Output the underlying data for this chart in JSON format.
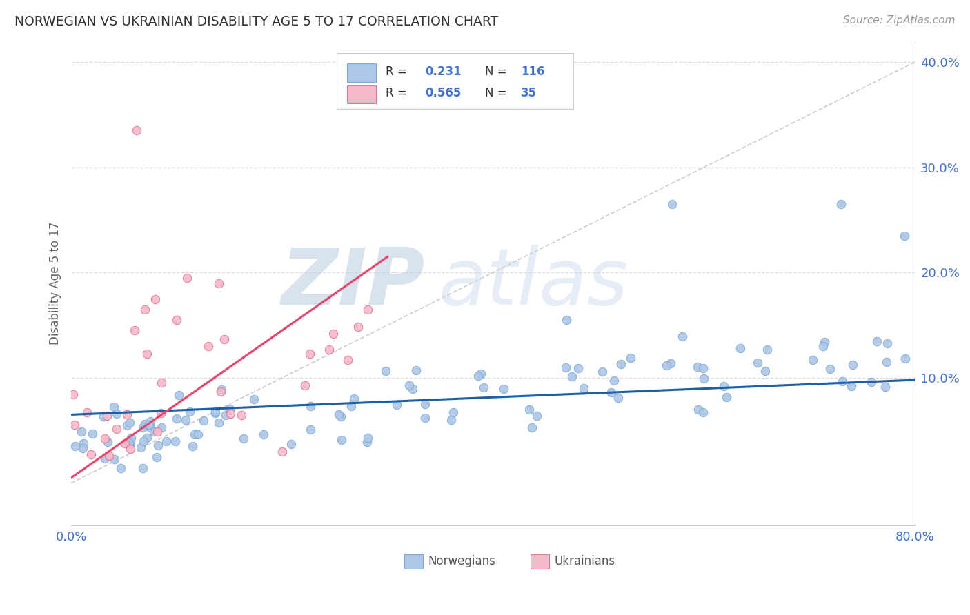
{
  "title": "NORWEGIAN VS UKRAINIAN DISABILITY AGE 5 TO 17 CORRELATION CHART",
  "source": "Source: ZipAtlas.com",
  "ylabel": "Disability Age 5 to 17",
  "xlim": [
    0.0,
    0.8
  ],
  "ylim": [
    -0.04,
    0.42
  ],
  "xticks": [
    0.0,
    0.1,
    0.2,
    0.3,
    0.4,
    0.5,
    0.6,
    0.7,
    0.8
  ],
  "xticklabels": [
    "0.0%",
    "",
    "",
    "",
    "",
    "",
    "",
    "",
    "80.0%"
  ],
  "yticks": [
    0.1,
    0.2,
    0.3,
    0.4
  ],
  "yticklabels": [
    "10.0%",
    "20.0%",
    "30.0%",
    "40.0%"
  ],
  "blue_dot_color": "#aec6e8",
  "blue_edge_color": "#7aaad0",
  "pink_dot_color": "#f5b8c8",
  "pink_edge_color": "#e07090",
  "blue_line_color": "#1a5fa8",
  "pink_line_color": "#e8446a",
  "ref_line_color": "#cccccc",
  "tick_color": "#4472c4",
  "grid_color": "#d8d8e8",
  "watermark_color": "#c8d8ec",
  "R_blue": 0.231,
  "N_blue": 116,
  "R_pink": 0.565,
  "N_pink": 35,
  "legend_label_blue": "Norwegians",
  "legend_label_pink": "Ukrainians",
  "watermark_zip": "ZIP",
  "watermark_atlas": "atlas",
  "blue_line_x0": 0.0,
  "blue_line_x1": 0.8,
  "blue_line_y0": 0.065,
  "blue_line_y1": 0.098,
  "pink_line_x0": 0.0,
  "pink_line_x1": 0.3,
  "pink_line_y0": 0.005,
  "pink_line_y1": 0.215,
  "ref_line_x0": 0.0,
  "ref_line_x1": 0.8,
  "ref_line_y0": 0.0,
  "ref_line_y1": 0.4
}
